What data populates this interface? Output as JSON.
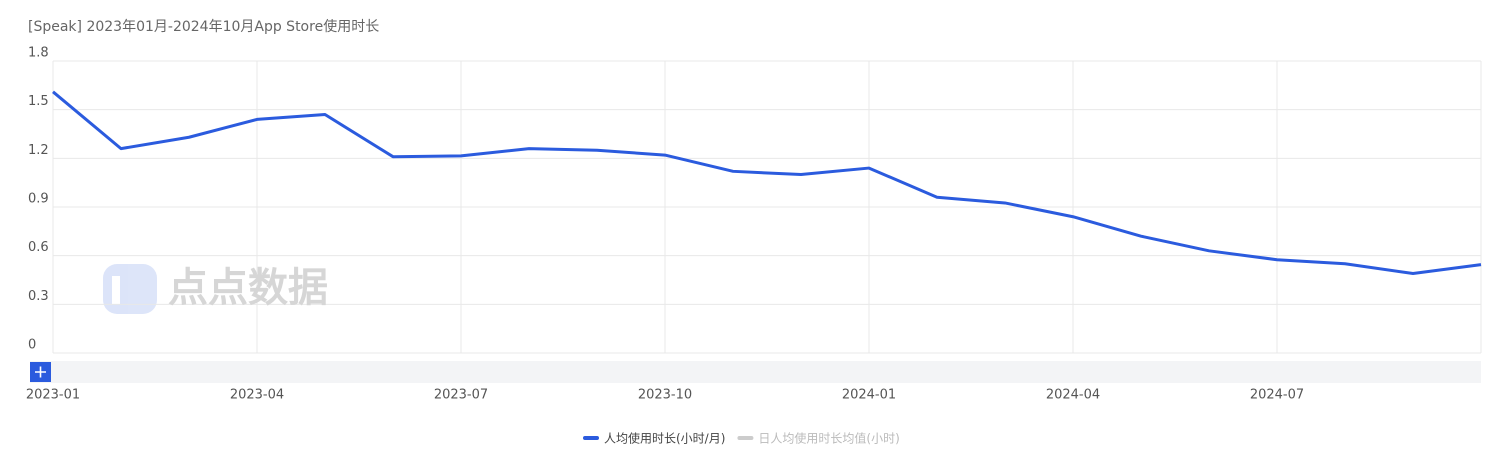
{
  "chart_data": {
    "type": "line",
    "title": "[Speak] 2023年01月-2024年10月App Store使用时长",
    "watermark": "点点数据",
    "categories": [
      "2023-01",
      null,
      null,
      "2023-04",
      null,
      null,
      "2023-07",
      null,
      null,
      "2023-10",
      null,
      null,
      "2024-01",
      null,
      null,
      "2024-04",
      null,
      null,
      "2024-07",
      null,
      null,
      null
    ],
    "series": [
      {
        "name": "人均使用时长(小时/月)",
        "color": "#2b5bde",
        "visible": true,
        "values": [
          1.61,
          1.26,
          1.33,
          1.44,
          1.47,
          1.21,
          1.215,
          1.26,
          1.25,
          1.22,
          1.12,
          1.1,
          1.14,
          0.96,
          0.925,
          0.84,
          0.72,
          0.63,
          0.575,
          0.55,
          0.49,
          0.545
        ]
      },
      {
        "name": "日人均使用时长均值(小时)",
        "color": "#cccccc",
        "visible": false,
        "values": [
          null,
          null,
          null,
          null,
          null,
          null,
          null,
          null,
          null,
          null,
          null,
          null,
          null,
          null,
          null,
          null,
          null,
          null,
          null,
          null,
          null,
          null
        ]
      }
    ],
    "ylim": [
      0,
      1.8
    ],
    "yticks": [
      0,
      0.3,
      0.6,
      0.9,
      1.2,
      1.5,
      1.8
    ],
    "grid": true
  }
}
